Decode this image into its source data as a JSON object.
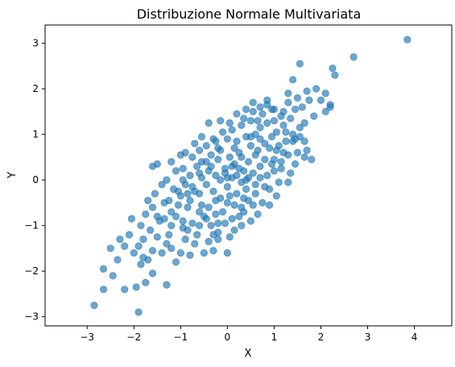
{
  "chart_data": {
    "type": "scatter",
    "title": "Distribuzione Normale Multivariata",
    "xlabel": "X",
    "ylabel": "Y",
    "xlim": [
      -3.9,
      4.8
    ],
    "ylim": [
      -3.2,
      3.4
    ],
    "xticks": [
      -3,
      -2,
      -1,
      0,
      1,
      2,
      3,
      4
    ],
    "yticks": [
      -3,
      -2,
      -1,
      0,
      1,
      2,
      3
    ],
    "grid": false,
    "color": "#1f77b4",
    "alpha": 0.65,
    "series": [
      {
        "points": [
          [
            -2.85,
            -2.75
          ],
          [
            -2.65,
            -2.4
          ],
          [
            -2.65,
            -1.95
          ],
          [
            -2.2,
            -2.4
          ],
          [
            -1.9,
            -2.9
          ],
          [
            -1.95,
            -2.35
          ],
          [
            -1.75,
            -2.25
          ],
          [
            -1.3,
            -2.3
          ],
          [
            -2.5,
            -1.5
          ],
          [
            -2.2,
            -1.45
          ],
          [
            -2.0,
            -1.6
          ],
          [
            -1.8,
            -1.7
          ],
          [
            -1.7,
            -1.75
          ],
          [
            -1.6,
            -1.55
          ],
          [
            -1.4,
            -1.6
          ],
          [
            -1.1,
            -1.8
          ],
          [
            -2.3,
            -1.3
          ],
          [
            -2.1,
            -1.2
          ],
          [
            -1.8,
            -1.3
          ],
          [
            -1.65,
            -1.1
          ],
          [
            -1.5,
            -1.25
          ],
          [
            -1.3,
            -1.4
          ],
          [
            -1.2,
            -1.0
          ],
          [
            -1.0,
            -1.6
          ],
          [
            -1.75,
            -0.75
          ],
          [
            -1.6,
            -0.6
          ],
          [
            -1.45,
            -0.9
          ],
          [
            -1.35,
            -0.5
          ],
          [
            -1.2,
            -0.7
          ],
          [
            -1.05,
            -0.55
          ],
          [
            -0.95,
            -0.9
          ],
          [
            -0.85,
            -1.1
          ],
          [
            -1.55,
            -0.3
          ],
          [
            -1.4,
            -0.1
          ],
          [
            -1.3,
            0.0
          ],
          [
            -1.15,
            -0.2
          ],
          [
            -1.0,
            -0.35
          ],
          [
            -0.9,
            -0.1
          ],
          [
            -0.8,
            -0.45
          ],
          [
            -0.7,
            -0.25
          ],
          [
            -1.6,
            0.3
          ],
          [
            -1.5,
            0.35
          ],
          [
            -1.1,
            0.2
          ],
          [
            -0.95,
            0.25
          ],
          [
            -0.8,
            0.1
          ],
          [
            -0.65,
            0.3
          ],
          [
            -0.55,
            0.05
          ],
          [
            -0.45,
            0.4
          ],
          [
            -1.0,
            0.55
          ],
          [
            -0.9,
            0.6
          ],
          [
            -0.7,
            0.8
          ],
          [
            -0.6,
            0.65
          ],
          [
            -0.4,
            1.25
          ],
          [
            -0.3,
            0.9
          ],
          [
            -0.2,
            0.7
          ],
          [
            -0.1,
            1.05
          ],
          [
            -0.6,
            -1.0
          ],
          [
            -0.5,
            -0.8
          ],
          [
            -0.4,
            -0.6
          ],
          [
            -0.3,
            -1.2
          ],
          [
            -0.2,
            -0.95
          ],
          [
            -0.1,
            -0.7
          ],
          [
            0.0,
            -0.5
          ],
          [
            0.1,
            -0.85
          ],
          [
            -0.5,
            -1.6
          ],
          [
            -0.3,
            -1.55
          ],
          [
            -0.2,
            -1.3
          ],
          [
            0.0,
            -1.6
          ],
          [
            -0.7,
            -1.4
          ],
          [
            -0.9,
            -1.3
          ],
          [
            -1.2,
            -1.5
          ],
          [
            -0.8,
            -1.65
          ],
          [
            -0.6,
            -0.3
          ],
          [
            -0.45,
            -0.1
          ],
          [
            -0.3,
            -0.25
          ],
          [
            -0.15,
            0.0
          ],
          [
            0.0,
            -0.15
          ],
          [
            0.1,
            0.05
          ],
          [
            0.2,
            -0.3
          ],
          [
            0.3,
            -0.05
          ],
          [
            -0.35,
            0.3
          ],
          [
            -0.2,
            0.45
          ],
          [
            -0.05,
            0.25
          ],
          [
            0.05,
            0.5
          ],
          [
            0.15,
            0.35
          ],
          [
            0.25,
            0.6
          ],
          [
            0.35,
            0.2
          ],
          [
            0.45,
            0.4
          ],
          [
            0.0,
            0.9
          ],
          [
            0.1,
            1.1
          ],
          [
            0.2,
            0.85
          ],
          [
            0.3,
            1.2
          ],
          [
            0.4,
            0.95
          ],
          [
            0.5,
            1.3
          ],
          [
            0.6,
            1.0
          ],
          [
            0.7,
            1.15
          ],
          [
            0.2,
            1.45
          ],
          [
            0.4,
            1.55
          ],
          [
            0.55,
            1.7
          ],
          [
            0.7,
            1.6
          ],
          [
            0.85,
            1.75
          ],
          [
            1.0,
            1.55
          ],
          [
            1.15,
            1.4
          ],
          [
            1.3,
            1.7
          ],
          [
            0.3,
            -0.6
          ],
          [
            0.45,
            -0.45
          ],
          [
            0.6,
            -0.3
          ],
          [
            0.75,
            -0.5
          ],
          [
            0.9,
            -0.2
          ],
          [
            1.05,
            -0.35
          ],
          [
            0.5,
            -0.9
          ],
          [
            0.65,
            -0.75
          ],
          [
            0.4,
            0.0
          ],
          [
            0.55,
            0.15
          ],
          [
            0.7,
            0.3
          ],
          [
            0.85,
            0.1
          ],
          [
            1.0,
            0.45
          ],
          [
            1.15,
            0.25
          ],
          [
            1.3,
            0.55
          ],
          [
            1.45,
            0.35
          ],
          [
            0.8,
            0.8
          ],
          [
            0.95,
            0.95
          ],
          [
            1.1,
            0.75
          ],
          [
            1.25,
            1.05
          ],
          [
            1.4,
            0.85
          ],
          [
            1.55,
            1.15
          ],
          [
            1.7,
            0.65
          ],
          [
            1.65,
            0.5
          ],
          [
            1.2,
            1.5
          ],
          [
            1.35,
            1.35
          ],
          [
            1.5,
            1.8
          ],
          [
            1.6,
            1.6
          ],
          [
            1.75,
            1.75
          ],
          [
            1.9,
            2.0
          ],
          [
            2.1,
            1.9
          ],
          [
            2.2,
            1.6
          ],
          [
            1.55,
            2.55
          ],
          [
            1.4,
            2.2
          ],
          [
            2.1,
            1.5
          ],
          [
            2.2,
            1.65
          ],
          [
            2.3,
            2.3
          ],
          [
            2.25,
            2.45
          ],
          [
            2.7,
            2.7
          ],
          [
            3.85,
            3.08
          ],
          [
            -0.05,
            -0.95
          ],
          [
            0.15,
            -1.1
          ],
          [
            0.25,
            -0.8
          ],
          [
            -0.25,
            -0.75
          ],
          [
            -0.15,
            -0.4
          ],
          [
            0.05,
            -0.35
          ],
          [
            0.35,
            -0.4
          ],
          [
            -0.55,
            -0.55
          ],
          [
            -0.85,
            -0.6
          ],
          [
            -1.1,
            -0.8
          ],
          [
            -0.75,
            -0.95
          ],
          [
            -0.65,
            -1.2
          ],
          [
            -0.4,
            -1.35
          ],
          [
            -0.95,
            -1.05
          ],
          [
            -1.25,
            -1.2
          ],
          [
            -1.5,
            -0.8
          ],
          [
            -0.25,
            0.1
          ],
          [
            -0.05,
            0.15
          ],
          [
            0.2,
            0.1
          ],
          [
            0.45,
            0.05
          ],
          [
            0.6,
            0.55
          ],
          [
            0.8,
            0.45
          ],
          [
            1.0,
            0.2
          ],
          [
            1.2,
            0.6
          ],
          [
            0.15,
            0.7
          ],
          [
            0.3,
            0.5
          ],
          [
            0.5,
            0.75
          ],
          [
            0.65,
            0.65
          ],
          [
            0.85,
            1.25
          ],
          [
            1.05,
            1.05
          ],
          [
            1.2,
            1.2
          ],
          [
            0.95,
            1.55
          ],
          [
            -0.45,
            0.75
          ],
          [
            -0.25,
            0.85
          ],
          [
            -0.55,
            0.95
          ],
          [
            -0.15,
            1.3
          ],
          [
            0.05,
            1.25
          ],
          [
            0.35,
            1.35
          ],
          [
            0.55,
            1.5
          ],
          [
            0.75,
            1.45
          ],
          [
            1.35,
            0.15
          ],
          [
            1.5,
            0.6
          ],
          [
            1.45,
            0.9
          ],
          [
            1.65,
            0.85
          ],
          [
            1.8,
            0.45
          ],
          [
            1.3,
            -0.05
          ],
          [
            1.1,
            -0.05
          ],
          [
            0.9,
            -0.55
          ],
          [
            -1.85,
            -1.0
          ],
          [
            -2.05,
            -0.85
          ],
          [
            -1.7,
            -0.45
          ],
          [
            -1.9,
            -1.45
          ],
          [
            -2.35,
            -1.75
          ],
          [
            -2.45,
            -2.1
          ],
          [
            -1.6,
            -2.05
          ],
          [
            -1.85,
            -1.85
          ],
          [
            -0.35,
            -1.0
          ],
          [
            -0.2,
            -1.15
          ],
          [
            0.05,
            -1.25
          ],
          [
            0.3,
            -1.0
          ],
          [
            0.15,
            -0.55
          ],
          [
            -0.45,
            -0.85
          ],
          [
            -0.6,
            -0.7
          ],
          [
            -0.75,
            -0.15
          ],
          [
            -0.95,
            0.0
          ],
          [
            -1.2,
            0.4
          ],
          [
            -0.75,
            0.5
          ],
          [
            -0.6,
            0.15
          ],
          [
            -0.35,
            0.55
          ],
          [
            -0.15,
            0.65
          ],
          [
            0.1,
            0.3
          ],
          [
            0.25,
            0.25
          ],
          [
            0.5,
            0.95
          ],
          [
            0.7,
            0.9
          ],
          [
            0.9,
            0.7
          ],
          [
            1.05,
            0.65
          ],
          [
            1.25,
            0.85
          ],
          [
            1.4,
            1.0
          ],
          [
            1.55,
            0.95
          ],
          [
            1.65,
            1.25
          ],
          [
            -1.35,
            -0.85
          ],
          [
            -1.25,
            -0.45
          ],
          [
            -1.05,
            -0.25
          ],
          [
            -0.85,
            -0.3
          ],
          [
            -0.55,
            0.4
          ],
          [
            -0.4,
            0.2
          ],
          [
            -0.25,
            -0.45
          ],
          [
            0.0,
            0.05
          ],
          [
            0.4,
            -0.2
          ],
          [
            0.6,
            -0.1
          ],
          [
            0.8,
            -0.15
          ],
          [
            0.95,
            0.35
          ],
          [
            1.15,
            0.4
          ],
          [
            0.7,
            0.05
          ],
          [
            0.55,
            -0.55
          ],
          [
            0.35,
            -0.7
          ],
          [
            2.0,
            1.75
          ],
          [
            1.85,
            1.4
          ],
          [
            1.7,
            1.95
          ],
          [
            1.45,
            1.55
          ],
          [
            1.3,
            1.9
          ],
          [
            1.0,
            1.3
          ],
          [
            0.85,
            1.65
          ],
          [
            0.65,
            1.3
          ]
        ]
      }
    ]
  }
}
